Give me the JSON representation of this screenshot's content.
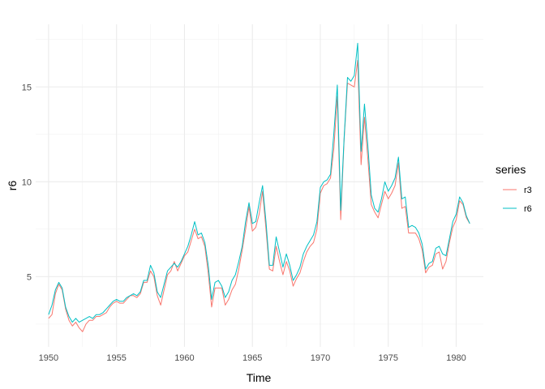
{
  "chart_data": {
    "type": "line",
    "title": "",
    "xlabel": "Time",
    "ylabel": "r6",
    "xlim": [
      1949.05,
      1982.0
    ],
    "ylim": [
      1.3,
      18.3
    ],
    "x_ticks": [
      1950,
      1955,
      1960,
      1965,
      1970,
      1975,
      1980
    ],
    "y_ticks": [
      5,
      10,
      15
    ],
    "grid": true,
    "legend": {
      "title": "series",
      "position": "right"
    },
    "series": [
      {
        "name": "r3",
        "color": "#F8766D",
        "points": [
          [
            1950.0,
            2.8
          ],
          [
            1950.25,
            3.0
          ],
          [
            1950.5,
            4.1
          ],
          [
            1950.75,
            4.6
          ],
          [
            1951.0,
            4.3
          ],
          [
            1951.25,
            3.3
          ],
          [
            1951.5,
            2.7
          ],
          [
            1951.75,
            2.4
          ],
          [
            1952.0,
            2.6
          ],
          [
            1952.25,
            2.3
          ],
          [
            1952.5,
            2.1
          ],
          [
            1952.75,
            2.5
          ],
          [
            1953.0,
            2.7
          ],
          [
            1953.25,
            2.7
          ],
          [
            1953.5,
            2.9
          ],
          [
            1953.75,
            2.9
          ],
          [
            1954.0,
            3.0
          ],
          [
            1954.25,
            3.1
          ],
          [
            1954.5,
            3.4
          ],
          [
            1954.75,
            3.6
          ],
          [
            1955.0,
            3.7
          ],
          [
            1955.25,
            3.6
          ],
          [
            1955.5,
            3.6
          ],
          [
            1955.75,
            3.8
          ],
          [
            1956.0,
            4.0
          ],
          [
            1956.25,
            4.0
          ],
          [
            1956.5,
            3.9
          ],
          [
            1956.75,
            4.1
          ],
          [
            1957.0,
            4.7
          ],
          [
            1957.25,
            4.7
          ],
          [
            1957.5,
            5.3
          ],
          [
            1957.75,
            5.0
          ],
          [
            1958.0,
            4.0
          ],
          [
            1958.25,
            3.5
          ],
          [
            1958.5,
            4.3
          ],
          [
            1958.75,
            5.1
          ],
          [
            1959.0,
            5.3
          ],
          [
            1959.25,
            5.8
          ],
          [
            1959.5,
            5.3
          ],
          [
            1959.75,
            5.7
          ],
          [
            1960.0,
            6.1
          ],
          [
            1960.25,
            6.3
          ],
          [
            1960.5,
            6.9
          ],
          [
            1960.75,
            7.5
          ],
          [
            1961.0,
            7.0
          ],
          [
            1961.25,
            7.1
          ],
          [
            1961.5,
            6.6
          ],
          [
            1961.75,
            5.2
          ],
          [
            1962.0,
            3.4
          ],
          [
            1962.25,
            4.4
          ],
          [
            1962.5,
            4.4
          ],
          [
            1962.75,
            4.4
          ],
          [
            1963.0,
            3.5
          ],
          [
            1963.25,
            3.8
          ],
          [
            1963.5,
            4.3
          ],
          [
            1963.75,
            4.6
          ],
          [
            1964.0,
            5.4
          ],
          [
            1964.25,
            6.4
          ],
          [
            1964.5,
            7.5
          ],
          [
            1964.75,
            8.7
          ],
          [
            1965.0,
            7.4
          ],
          [
            1965.25,
            7.6
          ],
          [
            1965.5,
            8.3
          ],
          [
            1965.75,
            9.5
          ],
          [
            1966.0,
            7.5
          ],
          [
            1966.25,
            5.4
          ],
          [
            1966.5,
            5.3
          ],
          [
            1966.75,
            6.6
          ],
          [
            1967.0,
            5.8
          ],
          [
            1967.25,
            5.1
          ],
          [
            1967.5,
            5.8
          ],
          [
            1967.75,
            5.3
          ],
          [
            1968.0,
            4.5
          ],
          [
            1968.25,
            4.9
          ],
          [
            1968.5,
            5.2
          ],
          [
            1968.75,
            5.8
          ],
          [
            1969.0,
            6.3
          ],
          [
            1969.25,
            6.6
          ],
          [
            1969.5,
            6.8
          ],
          [
            1969.75,
            7.5
          ],
          [
            1970.0,
            9.4
          ],
          [
            1970.25,
            9.8
          ],
          [
            1970.5,
            9.9
          ],
          [
            1970.75,
            10.2
          ],
          [
            1971.0,
            11.8
          ],
          [
            1971.25,
            14.5
          ],
          [
            1971.5,
            8.0
          ],
          [
            1971.75,
            12.2
          ],
          [
            1972.0,
            15.2
          ],
          [
            1972.25,
            15.1
          ],
          [
            1972.5,
            15.0
          ],
          [
            1972.75,
            16.4
          ],
          [
            1973.0,
            10.9
          ],
          [
            1973.25,
            13.4
          ],
          [
            1973.5,
            11.2
          ],
          [
            1973.75,
            8.8
          ],
          [
            1974.0,
            8.4
          ],
          [
            1974.25,
            8.1
          ],
          [
            1974.5,
            8.8
          ],
          [
            1974.75,
            9.5
          ],
          [
            1975.0,
            9.1
          ],
          [
            1975.25,
            9.4
          ],
          [
            1975.5,
            9.8
          ],
          [
            1975.75,
            11.0
          ],
          [
            1976.0,
            8.6
          ],
          [
            1976.25,
            8.7
          ],
          [
            1976.5,
            7.3
          ],
          [
            1976.75,
            7.3
          ],
          [
            1977.0,
            7.3
          ],
          [
            1977.25,
            7.0
          ],
          [
            1977.5,
            6.4
          ],
          [
            1977.75,
            5.2
          ],
          [
            1978.0,
            5.5
          ],
          [
            1978.25,
            5.6
          ],
          [
            1978.5,
            6.2
          ],
          [
            1978.75,
            6.3
          ],
          [
            1979.0,
            5.4
          ],
          [
            1979.25,
            5.8
          ],
          [
            1979.5,
            6.8
          ],
          [
            1979.75,
            7.6
          ],
          [
            1980.0,
            8.0
          ],
          [
            1980.25,
            9.0
          ],
          [
            1980.5,
            8.8
          ],
          [
            1980.75,
            8.1
          ],
          [
            1981.0,
            7.8
          ]
        ]
      },
      {
        "name": "r6",
        "color": "#00BFC4",
        "points": [
          [
            1950.0,
            3.0
          ],
          [
            1950.25,
            3.5
          ],
          [
            1950.5,
            4.3
          ],
          [
            1950.75,
            4.7
          ],
          [
            1951.0,
            4.4
          ],
          [
            1951.25,
            3.4
          ],
          [
            1951.5,
            2.9
          ],
          [
            1951.75,
            2.6
          ],
          [
            1952.0,
            2.8
          ],
          [
            1952.25,
            2.6
          ],
          [
            1952.5,
            2.7
          ],
          [
            1952.75,
            2.8
          ],
          [
            1953.0,
            2.9
          ],
          [
            1953.25,
            2.8
          ],
          [
            1953.5,
            3.0
          ],
          [
            1953.75,
            3.0
          ],
          [
            1954.0,
            3.1
          ],
          [
            1954.25,
            3.3
          ],
          [
            1954.5,
            3.5
          ],
          [
            1954.75,
            3.7
          ],
          [
            1955.0,
            3.8
          ],
          [
            1955.25,
            3.7
          ],
          [
            1955.5,
            3.7
          ],
          [
            1955.75,
            3.9
          ],
          [
            1956.0,
            4.0
          ],
          [
            1956.25,
            4.1
          ],
          [
            1956.5,
            4.0
          ],
          [
            1956.75,
            4.2
          ],
          [
            1957.0,
            4.8
          ],
          [
            1957.25,
            4.8
          ],
          [
            1957.5,
            5.6
          ],
          [
            1957.75,
            5.2
          ],
          [
            1958.0,
            4.2
          ],
          [
            1958.25,
            3.9
          ],
          [
            1958.5,
            4.6
          ],
          [
            1958.75,
            5.3
          ],
          [
            1959.0,
            5.5
          ],
          [
            1959.25,
            5.7
          ],
          [
            1959.5,
            5.5
          ],
          [
            1959.75,
            5.8
          ],
          [
            1960.0,
            6.2
          ],
          [
            1960.25,
            6.6
          ],
          [
            1960.5,
            7.2
          ],
          [
            1960.75,
            7.9
          ],
          [
            1961.0,
            7.2
          ],
          [
            1961.25,
            7.3
          ],
          [
            1961.5,
            6.8
          ],
          [
            1961.75,
            5.6
          ],
          [
            1962.0,
            3.8
          ],
          [
            1962.25,
            4.7
          ],
          [
            1962.5,
            4.8
          ],
          [
            1962.75,
            4.5
          ],
          [
            1963.0,
            3.9
          ],
          [
            1963.25,
            4.2
          ],
          [
            1963.5,
            4.8
          ],
          [
            1963.75,
            5.1
          ],
          [
            1964.0,
            5.8
          ],
          [
            1964.25,
            6.6
          ],
          [
            1964.5,
            7.9
          ],
          [
            1964.75,
            8.9
          ],
          [
            1965.0,
            7.8
          ],
          [
            1965.25,
            7.9
          ],
          [
            1965.5,
            8.9
          ],
          [
            1965.75,
            9.8
          ],
          [
            1966.0,
            7.9
          ],
          [
            1966.25,
            5.6
          ],
          [
            1966.5,
            5.6
          ],
          [
            1966.75,
            7.1
          ],
          [
            1967.0,
            6.3
          ],
          [
            1967.25,
            5.5
          ],
          [
            1967.5,
            6.2
          ],
          [
            1967.75,
            5.6
          ],
          [
            1968.0,
            4.8
          ],
          [
            1968.25,
            5.1
          ],
          [
            1968.5,
            5.5
          ],
          [
            1968.75,
            6.2
          ],
          [
            1969.0,
            6.6
          ],
          [
            1969.25,
            6.9
          ],
          [
            1969.5,
            7.2
          ],
          [
            1969.75,
            7.9
          ],
          [
            1970.0,
            9.7
          ],
          [
            1970.25,
            10.0
          ],
          [
            1970.5,
            10.1
          ],
          [
            1970.75,
            10.4
          ],
          [
            1971.0,
            12.6
          ],
          [
            1971.25,
            15.1
          ],
          [
            1971.5,
            8.5
          ],
          [
            1971.75,
            12.3
          ],
          [
            1972.0,
            15.5
          ],
          [
            1972.25,
            15.3
          ],
          [
            1972.5,
            15.6
          ],
          [
            1972.75,
            17.3
          ],
          [
            1973.0,
            11.6
          ],
          [
            1973.25,
            14.1
          ],
          [
            1973.5,
            11.9
          ],
          [
            1973.75,
            9.3
          ],
          [
            1974.0,
            8.6
          ],
          [
            1974.25,
            8.4
          ],
          [
            1974.5,
            9.1
          ],
          [
            1974.75,
            10.0
          ],
          [
            1975.0,
            9.5
          ],
          [
            1975.25,
            9.8
          ],
          [
            1975.5,
            10.2
          ],
          [
            1975.75,
            11.3
          ],
          [
            1976.0,
            9.1
          ],
          [
            1976.25,
            9.2
          ],
          [
            1976.5,
            7.6
          ],
          [
            1976.75,
            7.7
          ],
          [
            1977.0,
            7.6
          ],
          [
            1977.25,
            7.3
          ],
          [
            1977.5,
            6.7
          ],
          [
            1977.75,
            5.4
          ],
          [
            1978.0,
            5.7
          ],
          [
            1978.25,
            5.8
          ],
          [
            1978.5,
            6.5
          ],
          [
            1978.75,
            6.6
          ],
          [
            1979.0,
            6.2
          ],
          [
            1979.25,
            6.1
          ],
          [
            1979.5,
            7.0
          ],
          [
            1979.75,
            7.9
          ],
          [
            1980.0,
            8.3
          ],
          [
            1980.25,
            9.2
          ],
          [
            1980.5,
            8.9
          ],
          [
            1980.75,
            8.2
          ],
          [
            1981.0,
            7.8
          ]
        ]
      }
    ]
  }
}
